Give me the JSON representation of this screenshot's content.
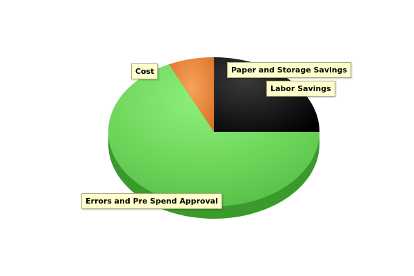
{
  "chart_data": {
    "type": "pie",
    "style": "3d",
    "legend": "none",
    "slices": [
      {
        "label": "Paper and Storage Savings",
        "value": 0.1,
        "color": "#000000"
      },
      {
        "label": "Labor Savings",
        "value": 24.9,
        "color": "#0a0a0a"
      },
      {
        "label": "Errors and Pre Spend Approval",
        "value": 68.0,
        "color": "#66cc4c"
      },
      {
        "label": "Cost",
        "value": 7.0,
        "color": "#e8863a"
      }
    ]
  }
}
